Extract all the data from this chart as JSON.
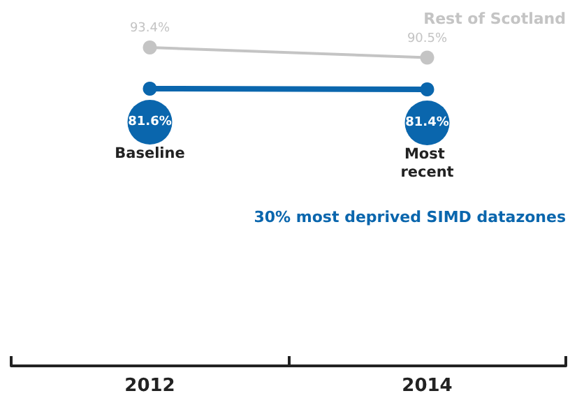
{
  "chart_data": {
    "type": "line",
    "categories": [
      "2012",
      "2014"
    ],
    "series": [
      {
        "name": "Rest of Scotland",
        "color": "#c4c4c4",
        "values": [
          93.4,
          90.5
        ],
        "value_labels": [
          "93.4%",
          "90.5%"
        ]
      },
      {
        "name": "30% most deprived SIMD datazones",
        "color": "#0a66ad",
        "values": [
          81.6,
          81.4
        ],
        "value_labels": [
          "81.6%",
          "81.4%"
        ]
      }
    ],
    "annotations": [
      "Baseline",
      "Most recent"
    ],
    "marker": "circle",
    "line_style": "solid",
    "grid": false,
    "legend": false
  }
}
